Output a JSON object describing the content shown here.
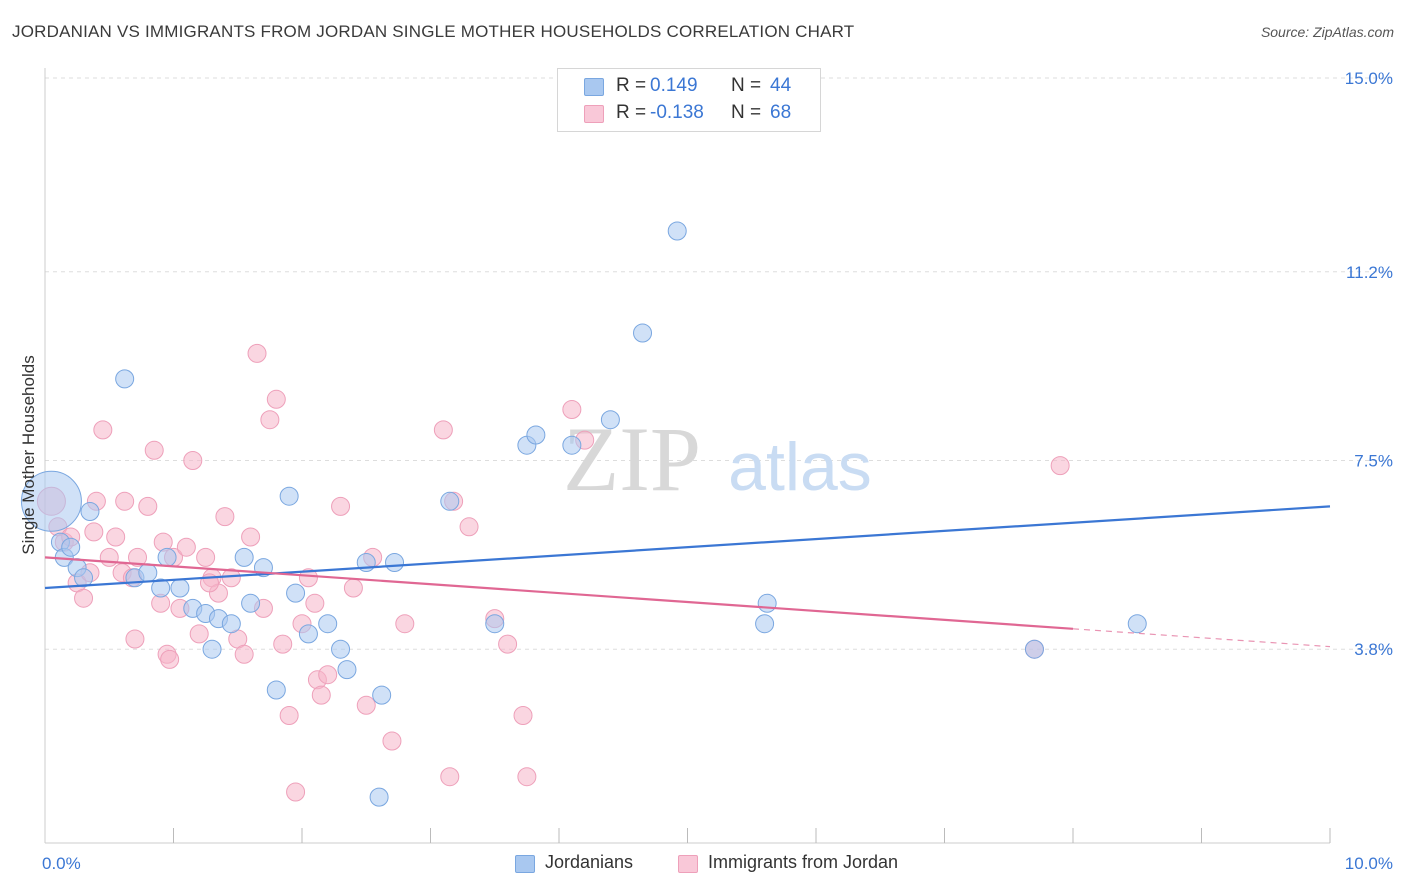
{
  "title": "JORDANIAN VS IMMIGRANTS FROM JORDAN SINGLE MOTHER HOUSEHOLDS CORRELATION CHART",
  "source": "Source: ZipAtlas.com",
  "colors": {
    "blue": "#3b77d4",
    "blue_fill": "#a9c8f0",
    "pink": "#e06793",
    "pink_fill": "#f5b4c9",
    "grid": "#dddddd",
    "tick_label": "#3b77d4"
  },
  "legend": {
    "rows": [
      {
        "r_label": "R =",
        "r_value": "0.149",
        "n_label": "N =",
        "n_value": "44"
      },
      {
        "r_label": "R =",
        "r_value": "-0.138",
        "n_label": "N =",
        "n_value": "68"
      }
    ]
  },
  "bottom_legend": {
    "items": [
      {
        "label": "Jordanians"
      },
      {
        "label": "Immigrants from Jordan"
      }
    ]
  },
  "watermark": {
    "zip": "ZIP",
    "atlas": "atlas"
  },
  "chart_data": {
    "type": "scatter",
    "title": "JORDANIAN VS IMMIGRANTS FROM JORDAN SINGLE MOTHER HOUSEHOLDS CORRELATION CHART",
    "xlabel": "",
    "ylabel": "Single Mother Households",
    "xlim": [
      0,
      10
    ],
    "ylim": [
      0,
      15
    ],
    "x_tick_labels": [
      {
        "value": 0,
        "label": "0.0%"
      },
      {
        "value": 10,
        "label": "10.0%"
      }
    ],
    "y_tick_labels": [
      {
        "value": 3.8,
        "label": "3.8%"
      },
      {
        "value": 7.5,
        "label": "7.5%"
      },
      {
        "value": 11.2,
        "label": "11.2%"
      },
      {
        "value": 15.0,
        "label": "15.0%"
      }
    ],
    "x_minor_ticks": [
      1,
      2,
      3,
      4,
      5,
      6,
      7,
      8,
      9,
      10
    ],
    "grid": true,
    "series": [
      {
        "name": "Jordanians",
        "r": 0.149,
        "n": 44,
        "trend": {
          "x0": 0,
          "y0": 5.0,
          "x1": 10,
          "y1": 6.6
        },
        "points": [
          [
            0.05,
            6.7,
            30
          ],
          [
            0.12,
            5.9,
            9
          ],
          [
            0.15,
            5.6,
            9
          ],
          [
            0.2,
            5.8,
            9
          ],
          [
            0.25,
            5.4,
            9
          ],
          [
            0.3,
            5.2,
            9
          ],
          [
            0.35,
            6.5,
            9
          ],
          [
            0.62,
            9.1,
            9
          ],
          [
            0.7,
            5.2,
            9
          ],
          [
            0.8,
            5.3,
            9
          ],
          [
            0.9,
            5.0,
            9
          ],
          [
            0.95,
            5.6,
            9
          ],
          [
            1.05,
            5.0,
            9
          ],
          [
            1.15,
            4.6,
            9
          ],
          [
            1.25,
            4.5,
            9
          ],
          [
            1.3,
            3.8,
            9
          ],
          [
            1.35,
            4.4,
            9
          ],
          [
            1.45,
            4.3,
            9
          ],
          [
            1.55,
            5.6,
            9
          ],
          [
            1.6,
            4.7,
            9
          ],
          [
            1.7,
            5.4,
            9
          ],
          [
            1.8,
            3.0,
            9
          ],
          [
            1.9,
            6.8,
            9
          ],
          [
            1.95,
            4.9,
            9
          ],
          [
            2.05,
            4.1,
            9
          ],
          [
            2.2,
            4.3,
            9
          ],
          [
            2.3,
            3.8,
            9
          ],
          [
            2.35,
            3.4,
            9
          ],
          [
            2.5,
            5.5,
            9
          ],
          [
            2.6,
            0.9,
            9
          ],
          [
            2.62,
            2.9,
            9
          ],
          [
            2.72,
            5.5,
            9
          ],
          [
            3.15,
            6.7,
            9
          ],
          [
            3.5,
            4.3,
            9
          ],
          [
            3.75,
            7.8,
            9
          ],
          [
            3.82,
            8.0,
            9
          ],
          [
            4.1,
            7.8,
            9
          ],
          [
            4.4,
            8.3,
            9
          ],
          [
            4.65,
            10.0,
            9
          ],
          [
            4.92,
            12.0,
            9
          ],
          [
            5.6,
            4.3,
            9
          ],
          [
            5.62,
            4.7,
            9
          ],
          [
            7.7,
            3.8,
            9
          ],
          [
            8.5,
            4.3,
            9
          ]
        ]
      },
      {
        "name": "Immigrants from Jordan",
        "r": -0.138,
        "n": 68,
        "trend": {
          "x0": 0,
          "y0": 5.6,
          "x1": 8.0,
          "y1": 4.2
        },
        "trend_dashed": {
          "x0": 8.0,
          "y0": 4.2,
          "x1": 10,
          "y1": 3.85
        },
        "points": [
          [
            0.05,
            6.7,
            14
          ],
          [
            0.1,
            6.2,
            9
          ],
          [
            0.15,
            5.9,
            9
          ],
          [
            0.2,
            6.0,
            9
          ],
          [
            0.25,
            5.1,
            9
          ],
          [
            0.3,
            4.8,
            9
          ],
          [
            0.35,
            5.3,
            9
          ],
          [
            0.4,
            6.7,
            9
          ],
          [
            0.45,
            8.1,
            9
          ],
          [
            0.5,
            5.6,
            9
          ],
          [
            0.55,
            6.0,
            9
          ],
          [
            0.6,
            5.3,
            9
          ],
          [
            0.62,
            6.7,
            9
          ],
          [
            0.68,
            5.2,
            9
          ],
          [
            0.7,
            4.0,
            9
          ],
          [
            0.72,
            5.6,
            9
          ],
          [
            0.8,
            6.6,
            9
          ],
          [
            0.85,
            7.7,
            9
          ],
          [
            0.9,
            4.7,
            9
          ],
          [
            0.95,
            3.7,
            9
          ],
          [
            0.97,
            3.6,
            9
          ],
          [
            1.0,
            5.6,
            9
          ],
          [
            1.05,
            4.6,
            9
          ],
          [
            1.1,
            5.8,
            9
          ],
          [
            1.15,
            7.5,
            9
          ],
          [
            1.2,
            4.1,
            9
          ],
          [
            1.25,
            5.6,
            9
          ],
          [
            1.3,
            5.2,
            9
          ],
          [
            1.35,
            4.9,
            9
          ],
          [
            1.4,
            6.4,
            9
          ],
          [
            1.45,
            5.2,
            9
          ],
          [
            1.5,
            4.0,
            9
          ],
          [
            1.55,
            3.7,
            9
          ],
          [
            1.6,
            6.0,
            9
          ],
          [
            1.65,
            9.6,
            9
          ],
          [
            1.7,
            4.6,
            9
          ],
          [
            1.75,
            8.3,
            9
          ],
          [
            1.8,
            8.7,
            9
          ],
          [
            1.85,
            3.9,
            9
          ],
          [
            1.9,
            2.5,
            9
          ],
          [
            1.95,
            1.0,
            9
          ],
          [
            2.0,
            4.3,
            9
          ],
          [
            2.05,
            5.2,
            9
          ],
          [
            2.1,
            4.7,
            9
          ],
          [
            2.12,
            3.2,
            9
          ],
          [
            2.15,
            2.9,
            9
          ],
          [
            2.3,
            6.6,
            9
          ],
          [
            2.4,
            5.0,
            9
          ],
          [
            2.5,
            2.7,
            9
          ],
          [
            2.55,
            5.6,
            9
          ],
          [
            2.7,
            2.0,
            9
          ],
          [
            2.8,
            4.3,
            9
          ],
          [
            3.1,
            8.1,
            9
          ],
          [
            3.15,
            1.3,
            9
          ],
          [
            3.18,
            6.7,
            9
          ],
          [
            3.3,
            6.2,
            9
          ],
          [
            3.5,
            4.4,
            9
          ],
          [
            3.6,
            3.9,
            9
          ],
          [
            3.72,
            2.5,
            9
          ],
          [
            3.75,
            1.3,
            9
          ],
          [
            4.1,
            8.5,
            9
          ],
          [
            7.7,
            3.8,
            9
          ],
          [
            7.9,
            7.4,
            9
          ],
          [
            4.2,
            7.9,
            9
          ],
          [
            1.28,
            5.1,
            9
          ],
          [
            0.92,
            5.9,
            9
          ],
          [
            2.2,
            3.3,
            9
          ],
          [
            0.38,
            6.1,
            9
          ]
        ]
      }
    ]
  }
}
